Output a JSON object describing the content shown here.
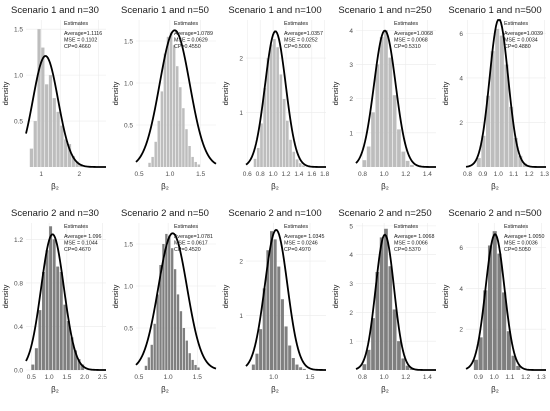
{
  "chart_data": [
    {
      "type": "bar",
      "title": "Scenario 1 and n=30",
      "xlabel": "β₂",
      "ylabel": "density",
      "bar_color": "#bdbdbd",
      "xlim": [
        0.6,
        2.7
      ],
      "ylim": [
        0,
        1.6
      ],
      "xticks": [
        1,
        1.5,
        2,
        2.5
      ],
      "xticklabels": [
        "1",
        "",
        "2",
        ""
      ],
      "yticks": [
        0.5,
        1.0,
        1.5
      ],
      "yticklabels": [
        "0.5",
        "1.0",
        "1.5"
      ],
      "bins": [
        0.7,
        0.8,
        0.9,
        1.0,
        1.1,
        1.2,
        1.3,
        1.4,
        1.5,
        1.6,
        1.7,
        1.8,
        1.9,
        2.0,
        2.1
      ],
      "densities": [
        0.2,
        0.5,
        1.5,
        1.3,
        0.9,
        1.0,
        0.75,
        0.6,
        0.45,
        0.3,
        0.25,
        0.12,
        0.06,
        0.03
      ],
      "curve": {
        "mean": 1.1116,
        "sd": 0.33
      },
      "legend": {
        "title": "Estimates",
        "lines": [
          "Average=1.1116",
          "MSE = 0.1102",
          "CP=0.4660"
        ]
      }
    },
    {
      "type": "bar",
      "title": "Scenario 1 and n=50",
      "xlabel": "β₂",
      "ylabel": "density",
      "bar_color": "#bdbdbd",
      "xlim": [
        0.45,
        1.75
      ],
      "ylim": [
        0,
        1.75
      ],
      "xticks": [
        0.5,
        1.0,
        1.5
      ],
      "xticklabels": [
        "0.5",
        "1.0",
        "1.5"
      ],
      "yticks": [
        0.5,
        1.0,
        1.5
      ],
      "yticklabels": [
        "0.5",
        "1.0",
        "1.5"
      ],
      "bins": [
        0.65,
        0.7,
        0.75,
        0.8,
        0.85,
        0.9,
        0.95,
        1.0,
        1.05,
        1.1,
        1.15,
        1.2,
        1.25,
        1.3,
        1.35,
        1.4,
        1.45,
        1.5
      ],
      "densities": [
        0.05,
        0.12,
        0.3,
        0.55,
        0.9,
        1.35,
        1.55,
        1.6,
        1.45,
        1.2,
        0.95,
        0.7,
        0.45,
        0.25,
        0.12,
        0.06,
        0.03
      ],
      "curve": {
        "mean": 1.0789,
        "sd": 0.245
      },
      "legend": {
        "title": "Estimates",
        "lines": [
          "Average=1.0789",
          "MSE = 0.0629",
          "CP=0.4550"
        ]
      }
    },
    {
      "type": "bar",
      "title": "Scenario 1 and n=100",
      "xlabel": "β₂",
      "ylabel": "density",
      "bar_color": "#bdbdbd",
      "xlim": [
        0.58,
        1.82
      ],
      "ylim": [
        0,
        2.7
      ],
      "xticks": [
        0.6,
        0.8,
        1.0,
        1.2,
        1.4,
        1.6,
        1.8
      ],
      "xticklabels": [
        "0.6",
        "0.8",
        "1.0",
        "1.2",
        "1.4",
        "1.6",
        "1.8"
      ],
      "yticks": [
        1,
        2
      ],
      "yticklabels": [
        "1",
        "2"
      ],
      "bins": [
        0.7,
        0.75,
        0.8,
        0.85,
        0.9,
        0.95,
        1.0,
        1.05,
        1.1,
        1.15,
        1.2,
        1.25,
        1.3,
        1.35,
        1.4,
        1.45,
        1.5
      ],
      "densities": [
        0.15,
        0.35,
        0.8,
        1.45,
        2.0,
        2.25,
        2.35,
        2.2,
        1.7,
        1.25,
        0.85,
        0.5,
        0.28,
        0.14,
        0.07,
        0.03
      ],
      "curve": {
        "mean": 1.0357,
        "sd": 0.16
      },
      "legend": {
        "title": "Estimates",
        "lines": [
          "Average=1.0357",
          "MSE = 0.0252",
          "CP=0.5000"
        ]
      }
    },
    {
      "type": "bar",
      "title": "Scenario 1 and n=250",
      "xlabel": "β₂",
      "ylabel": "density",
      "bar_color": "#bdbdbd",
      "xlim": [
        0.74,
        1.48
      ],
      "ylim": [
        0,
        4.3
      ],
      "xticks": [
        0.8,
        1.0,
        1.2,
        1.4
      ],
      "xticklabels": [
        "0.8",
        "1.0",
        "1.2",
        "1.4"
      ],
      "yticks": [
        1,
        2,
        3,
        4
      ],
      "yticklabels": [
        "1",
        "2",
        "3",
        "4"
      ],
      "bins": [
        0.8,
        0.84,
        0.88,
        0.92,
        0.96,
        1.0,
        1.04,
        1.08,
        1.12,
        1.16,
        1.2,
        1.24,
        1.28
      ],
      "densities": [
        0.2,
        0.6,
        1.6,
        3.0,
        3.8,
        4.0,
        3.2,
        2.1,
        1.1,
        0.45,
        0.18,
        0.06
      ],
      "curve": {
        "mean": 1.0068,
        "sd": 0.1
      },
      "legend": {
        "title": "Estimates",
        "lines": [
          "Average=1.0068",
          "MSE = 0.0068",
          "CP=0.5310"
        ]
      }
    },
    {
      "type": "bar",
      "title": "Scenario 1 and n=500",
      "xlabel": "β₂",
      "ylabel": "density",
      "bar_color": "#bdbdbd",
      "xlim": [
        0.79,
        1.31
      ],
      "ylim": [
        0,
        6.6
      ],
      "xticks": [
        0.8,
        0.9,
        1.0,
        1.1,
        1.2,
        1.3
      ],
      "xticklabels": [
        "0.8",
        "0.9",
        "1.0",
        "1.1",
        "1.2",
        "1.3"
      ],
      "yticks": [
        2,
        4,
        6
      ],
      "yticklabels": [
        "2",
        "4",
        "6"
      ],
      "bins": [
        0.86,
        0.89,
        0.92,
        0.95,
        0.98,
        1.01,
        1.04,
        1.07,
        1.1,
        1.13,
        1.16,
        1.19
      ],
      "densities": [
        0.4,
        1.4,
        3.2,
        5.2,
        6.2,
        5.9,
        4.6,
        2.7,
        1.3,
        0.5,
        0.15
      ],
      "curve": {
        "mean": 1.0039,
        "sd": 0.06
      },
      "legend": {
        "title": "Estimates",
        "lines": [
          "Average=1.0039",
          "MSE = 0.0034",
          "CP=0.4880"
        ]
      }
    },
    {
      "type": "bar",
      "title": "Scenario 2 and n=30",
      "xlabel": "β₂",
      "ylabel": "density",
      "bar_color": "#7f7f7f",
      "xlim": [
        0.35,
        2.6
      ],
      "ylim": [
        0,
        1.35
      ],
      "xticks": [
        0.5,
        1.0,
        1.5,
        2.0,
        2.5
      ],
      "xticklabels": [
        "0.5",
        "1.0",
        "1.5",
        "2.0",
        "2.5"
      ],
      "yticks": [
        0.0,
        0.4,
        0.8,
        1.2
      ],
      "yticklabels": [
        "0.0",
        "0.4",
        "0.8",
        "1.2"
      ],
      "bins": [
        0.5,
        0.6,
        0.7,
        0.8,
        0.9,
        1.0,
        1.1,
        1.2,
        1.3,
        1.4,
        1.5,
        1.6,
        1.7,
        1.8,
        1.9,
        2.0
      ],
      "densities": [
        0.05,
        0.2,
        0.55,
        0.9,
        1.1,
        1.32,
        1.2,
        0.95,
        0.9,
        0.6,
        0.45,
        0.3,
        0.18,
        0.1,
        0.05
      ],
      "curve": {
        "mean": 1.096,
        "sd": 0.32
      },
      "legend": {
        "title": "Estimates",
        "lines": [
          "Average= 1.096",
          "MSE = 0.1044",
          "CP=0.4670"
        ]
      }
    },
    {
      "type": "bar",
      "title": "Scenario 2 and n=50",
      "xlabel": "β₂",
      "ylabel": "density",
      "bar_color": "#7f7f7f",
      "xlim": [
        0.45,
        1.82
      ],
      "ylim": [
        0,
        1.75
      ],
      "xticks": [
        0.5,
        1.0,
        1.5
      ],
      "xticklabels": [
        "0.5",
        "1.0",
        "1.5"
      ],
      "yticks": [
        0.5,
        1.0,
        1.5
      ],
      "yticklabels": [
        "0.5",
        "1.0",
        "1.5"
      ],
      "bins": [
        0.6,
        0.65,
        0.7,
        0.75,
        0.8,
        0.85,
        0.9,
        0.95,
        1.0,
        1.05,
        1.1,
        1.15,
        1.2,
        1.25,
        1.3,
        1.35,
        1.4,
        1.45,
        1.5,
        1.55
      ],
      "densities": [
        0.05,
        0.15,
        0.3,
        0.55,
        0.9,
        1.25,
        1.5,
        1.62,
        1.6,
        1.45,
        1.2,
        0.9,
        0.7,
        0.5,
        0.35,
        0.2,
        0.12,
        0.06,
        0.03
      ],
      "curve": {
        "mean": 1.0781,
        "sd": 0.245
      },
      "legend": {
        "title": "Estimates",
        "lines": [
          "Average=1.0781",
          "MSE = 0.0617",
          "CP=0.4520"
        ]
      }
    },
    {
      "type": "bar",
      "title": "Scenario 2 and n=100",
      "xlabel": "β₂",
      "ylabel": "density",
      "bar_color": "#7f7f7f",
      "xlim": [
        0.62,
        1.72
      ],
      "ylim": [
        0,
        2.7
      ],
      "xticks": [
        1.0,
        1.5
      ],
      "xticklabels": [
        "1.0",
        "1.5"
      ],
      "yticks": [
        1,
        2
      ],
      "yticklabels": [
        "1",
        "2"
      ],
      "bins": [
        0.7,
        0.75,
        0.8,
        0.85,
        0.9,
        0.95,
        1.0,
        1.05,
        1.1,
        1.15,
        1.2,
        1.25,
        1.3,
        1.35,
        1.4,
        1.45
      ],
      "densities": [
        0.1,
        0.3,
        0.75,
        1.5,
        2.2,
        2.55,
        2.4,
        1.9,
        1.3,
        0.8,
        0.45,
        0.22,
        0.1,
        0.05,
        0.02
      ],
      "curve": {
        "mean": 1.0345,
        "sd": 0.155
      },
      "legend": {
        "title": "Estimates",
        "lines": [
          "Average= 1.0345",
          "MSE = 0.0246",
          "CP=0.4970"
        ]
      }
    },
    {
      "type": "bar",
      "title": "Scenario 2 and n=250",
      "xlabel": "β₂",
      "ylabel": "density",
      "bar_color": "#7f7f7f",
      "xlim": [
        0.74,
        1.48
      ],
      "ylim": [
        0,
        5.1
      ],
      "xticks": [
        0.8,
        1.0,
        1.2,
        1.4
      ],
      "xticklabels": [
        "0.8",
        "1.0",
        "1.2",
        "1.4"
      ],
      "yticks": [
        1,
        2,
        3,
        4,
        5
      ],
      "yticklabels": [
        "1",
        "2",
        "3",
        "4",
        "5"
      ],
      "bins": [
        0.8,
        0.84,
        0.88,
        0.92,
        0.96,
        1.0,
        1.04,
        1.08,
        1.12,
        1.16,
        1.2,
        1.24,
        1.28
      ],
      "densities": [
        0.2,
        0.7,
        1.8,
        3.4,
        4.6,
        4.9,
        3.6,
        2.1,
        1.0,
        0.4,
        0.15,
        0.05
      ],
      "curve": {
        "mean": 1.0068,
        "sd": 0.085
      },
      "legend": {
        "title": "Estimates",
        "lines": [
          "Average= 1.0068",
          "MSE = 0.0066",
          "CP=0.5370"
        ]
      }
    },
    {
      "type": "bar",
      "title": "Scenario 2 and n=500",
      "xlabel": "β₂",
      "ylabel": "density",
      "bar_color": "#7f7f7f",
      "xlim": [
        0.82,
        1.33
      ],
      "ylim": [
        0,
        7.2
      ],
      "xticks": [
        0.9,
        1.0,
        1.1,
        1.2,
        1.3
      ],
      "xticklabels": [
        "0.9",
        "1.0",
        "1.1",
        "1.2",
        "1.3"
      ],
      "yticks": [
        2,
        4,
        6
      ],
      "yticklabels": [
        "2",
        "4",
        "6"
      ],
      "bins": [
        0.87,
        0.9,
        0.93,
        0.96,
        0.99,
        1.02,
        1.05,
        1.08,
        1.11,
        1.14,
        1.17
      ],
      "densities": [
        0.5,
        1.6,
        3.9,
        6.1,
        6.8,
        5.7,
        3.8,
        1.9,
        0.7,
        0.2
      ],
      "curve": {
        "mean": 1.005,
        "sd": 0.06
      },
      "legend": {
        "title": "Estimates",
        "lines": [
          "Average= 1.0050",
          "MSE = 0.0036",
          "CP=0.5050"
        ]
      }
    }
  ]
}
